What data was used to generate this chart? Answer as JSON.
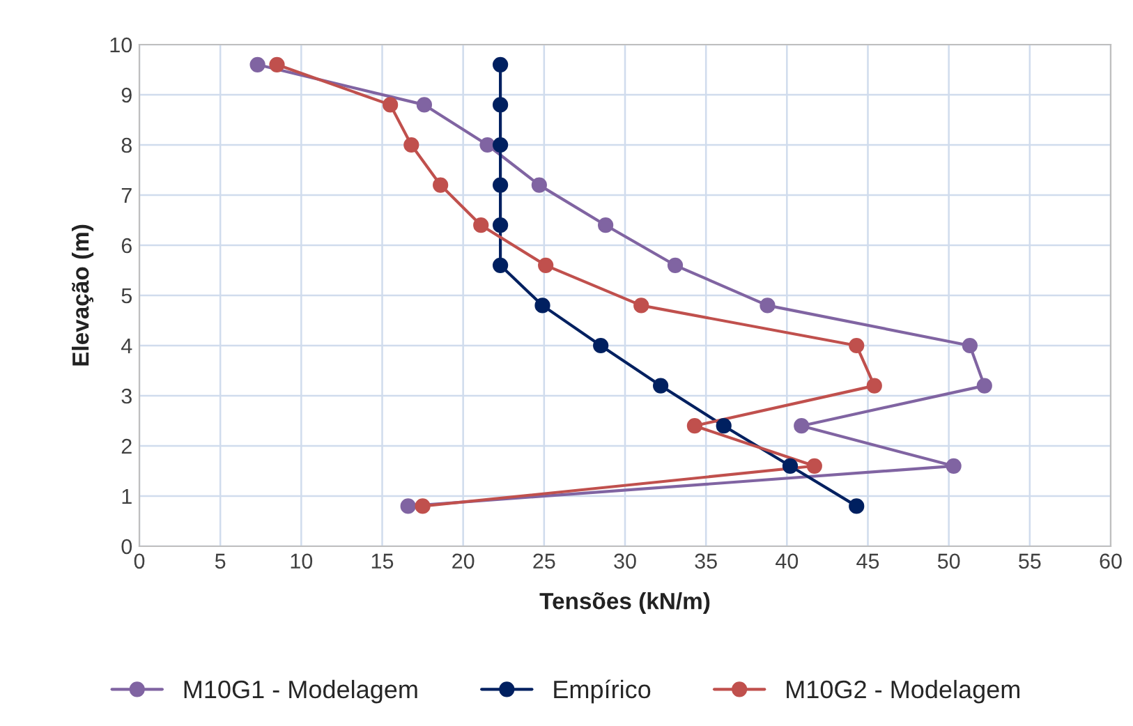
{
  "chart_data": {
    "type": "line",
    "xlabel": "Tensões (kN/m)",
    "ylabel": "Elevação (m)",
    "xlim": [
      0,
      60
    ],
    "xticks": [
      0,
      5,
      10,
      15,
      20,
      25,
      30,
      35,
      40,
      45,
      50,
      55,
      60
    ],
    "ylim": [
      0,
      10
    ],
    "yticks": [
      0,
      1,
      2,
      3,
      4,
      5,
      6,
      7,
      8,
      9,
      10
    ],
    "grid": true,
    "legend": "bottom",
    "marker": "circle",
    "line_style": "solid",
    "series": [
      {
        "name": "M10G1 - Modelagem",
        "color": "#8064a2",
        "x": [
          7.3,
          17.6,
          21.5,
          24.7,
          28.8,
          33.1,
          38.8,
          51.3,
          52.2,
          40.9,
          50.3,
          16.6
        ],
        "values": [
          9.6,
          8.8,
          8.0,
          7.2,
          6.4,
          5.6,
          4.8,
          4.0,
          3.2,
          2.4,
          1.6,
          0.8
        ]
      },
      {
        "name": "Empírico",
        "color": "#002060",
        "x": [
          22.3,
          22.3,
          22.3,
          22.3,
          22.3,
          22.3,
          24.9,
          28.5,
          32.2,
          36.1,
          40.2,
          44.3
        ],
        "values": [
          9.6,
          8.8,
          8.0,
          7.2,
          6.4,
          5.6,
          4.8,
          4.0,
          3.2,
          2.4,
          1.6,
          0.8
        ]
      },
      {
        "name": "M10G2 - Modelagem",
        "color": "#c0504d",
        "x": [
          8.5,
          15.5,
          16.8,
          18.6,
          21.1,
          25.1,
          31.0,
          44.3,
          45.4,
          34.3,
          41.7,
          17.5
        ],
        "values": [
          9.6,
          8.8,
          8.0,
          7.2,
          6.4,
          5.6,
          4.8,
          4.0,
          3.2,
          2.4,
          1.6,
          0.8
        ]
      }
    ]
  }
}
